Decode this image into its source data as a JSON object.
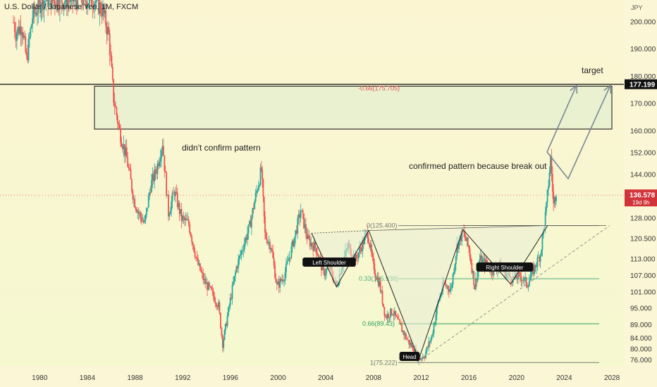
{
  "header": {
    "title": "U.S. Dollar / Japanese Yen, 1M, FXCM"
  },
  "chart_data": {
    "type": "candlestick",
    "currency": "JPY",
    "ylim": [
      74,
      206
    ],
    "xlim": [
      1977.5,
      2029
    ],
    "y_ticks": [
      {
        "value": 200.0,
        "label": "200.000"
      },
      {
        "value": 190.0,
        "label": "190.000"
      },
      {
        "value": 180.0,
        "label": "180.000"
      },
      {
        "value": 170.0,
        "label": "170.000"
      },
      {
        "value": 160.0,
        "label": "160.000"
      },
      {
        "value": 152.0,
        "label": "152.000"
      },
      {
        "value": 144.0,
        "label": "144.000"
      },
      {
        "value": 128.0,
        "label": "128.000"
      },
      {
        "value": 120.5,
        "label": "120.500"
      },
      {
        "value": 113.0,
        "label": "113.000"
      },
      {
        "value": 107.0,
        "label": "107.000"
      },
      {
        "value": 101.0,
        "label": "101.000"
      },
      {
        "value": 95.0,
        "label": "95.000"
      },
      {
        "value": 89.0,
        "label": "89.000"
      },
      {
        "value": 84.0,
        "label": "84.000"
      },
      {
        "value": 80.0,
        "label": "80.000"
      },
      {
        "value": 76.0,
        "label": "76.000"
      }
    ],
    "x_ticks": [
      {
        "value": 1980,
        "label": "1980"
      },
      {
        "value": 1984,
        "label": "1984"
      },
      {
        "value": 1988,
        "label": "1988"
      },
      {
        "value": 1992,
        "label": "1992"
      },
      {
        "value": 1996,
        "label": "1996"
      },
      {
        "value": 2000,
        "label": "2000"
      },
      {
        "value": 2004,
        "label": "2004"
      },
      {
        "value": 2008,
        "label": "2008"
      },
      {
        "value": 2012,
        "label": "2012"
      },
      {
        "value": 2016,
        "label": "2016"
      },
      {
        "value": 2020,
        "label": "2020"
      },
      {
        "value": 2024,
        "label": "2024"
      },
      {
        "value": 2028,
        "label": "2028"
      }
    ],
    "price_path": [
      [
        1977.8,
        200
      ],
      [
        1978.0,
        196
      ],
      [
        1978.5,
        199
      ],
      [
        1978.9,
        186
      ],
      [
        1979.4,
        202
      ],
      [
        1980.2,
        208
      ],
      [
        1984.6,
        208
      ],
      [
        1985.3,
        204
      ],
      [
        1985.8,
        195
      ],
      [
        1986.2,
        172
      ],
      [
        1986.7,
        160
      ],
      [
        1987.3,
        150
      ],
      [
        1987.9,
        135
      ],
      [
        1988.3,
        130
      ],
      [
        1988.8,
        126
      ],
      [
        1989.3,
        140
      ],
      [
        1989.8,
        146
      ],
      [
        1990.3,
        156
      ],
      [
        1990.8,
        130
      ],
      [
        1991.3,
        138
      ],
      [
        1991.9,
        128
      ],
      [
        1992.5,
        126
      ],
      [
        1993.2,
        112
      ],
      [
        1993.8,
        105
      ],
      [
        1994.4,
        101
      ],
      [
        1995.0,
        96
      ],
      [
        1995.35,
        82
      ],
      [
        1995.9,
        96
      ],
      [
        1996.5,
        110
      ],
      [
        1997.0,
        117
      ],
      [
        1997.6,
        125
      ],
      [
        1998.2,
        138
      ],
      [
        1998.6,
        146
      ],
      [
        1998.9,
        122
      ],
      [
        1999.4,
        118
      ],
      [
        1999.9,
        103
      ],
      [
        2000.5,
        107
      ],
      [
        2001.2,
        118
      ],
      [
        2001.9,
        131
      ],
      [
        2002.5,
        120
      ],
      [
        2003.2,
        117
      ],
      [
        2003.8,
        108
      ],
      [
        2004.3,
        110
      ],
      [
        2004.9,
        103
      ],
      [
        2005.4,
        112
      ],
      [
        2005.9,
        118
      ],
      [
        2006.5,
        113
      ],
      [
        2007.0,
        118
      ],
      [
        2007.5,
        123
      ],
      [
        2008.0,
        110
      ],
      [
        2008.5,
        104
      ],
      [
        2009.0,
        92
      ],
      [
        2009.6,
        94
      ],
      [
        2010.3,
        88
      ],
      [
        2010.9,
        83
      ],
      [
        2011.4,
        80
      ],
      [
        2011.8,
        76.5
      ],
      [
        2012.3,
        78
      ],
      [
        2012.9,
        85
      ],
      [
        2013.4,
        97
      ],
      [
        2013.9,
        104
      ],
      [
        2014.5,
        102
      ],
      [
        2015.0,
        118
      ],
      [
        2015.5,
        123
      ],
      [
        2016.0,
        117
      ],
      [
        2016.5,
        103
      ],
      [
        2016.9,
        113
      ],
      [
        2017.5,
        111
      ],
      [
        2018.0,
        109
      ],
      [
        2018.5,
        111
      ],
      [
        2019.0,
        108
      ],
      [
        2019.7,
        106
      ],
      [
        2020.3,
        107
      ],
      [
        2020.9,
        104
      ],
      [
        2021.5,
        110
      ],
      [
        2022.0,
        115
      ],
      [
        2022.5,
        132
      ],
      [
        2022.85,
        150
      ],
      [
        2023.1,
        133
      ],
      [
        2023.4,
        140
      ]
    ],
    "current_price": {
      "value": 136.578,
      "label": "136.578",
      "countdown": "19d 9h"
    },
    "target_level": {
      "value": 177.199,
      "label": "177.199"
    },
    "fib_levels": [
      {
        "ratio": "-0.66",
        "price": 175.705,
        "label": "-0.66(175.705)",
        "color": "#e05050"
      },
      {
        "ratio": "0",
        "price": 125.4,
        "label": "0(125.400)",
        "color": "#777777"
      },
      {
        "ratio": "0.33",
        "price": 105.938,
        "label": "0.33(105.938)",
        "color": "#4caf80"
      },
      {
        "ratio": "0.66",
        "price": 89.43,
        "label": "0.66(89.43)",
        "color": "#2e9e5e"
      },
      {
        "ratio": "1",
        "price": 75.222,
        "label": "1(75.222)",
        "color": "#777777"
      }
    ],
    "pattern_labels": {
      "left_shoulder": "Left Shoulder",
      "head": "Head",
      "right_shoulder": "Right Shoulder"
    },
    "annotations": {
      "target": "target",
      "didnt_confirm": "didn't confirm pattern",
      "confirmed": "confirmed pattern because break out"
    },
    "colors": {
      "up": "#26a69a",
      "down": "#ef5350",
      "box_fill": "#cfe9cf",
      "arrow": "#7a8a93"
    }
  }
}
